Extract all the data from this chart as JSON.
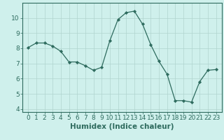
{
  "x": [
    0,
    1,
    2,
    3,
    4,
    5,
    6,
    7,
    8,
    9,
    10,
    11,
    12,
    13,
    14,
    15,
    16,
    17,
    18,
    19,
    20,
    21,
    22,
    23
  ],
  "y": [
    8.05,
    8.35,
    8.35,
    8.15,
    7.8,
    7.1,
    7.1,
    6.85,
    6.55,
    6.75,
    8.5,
    9.9,
    10.35,
    10.45,
    9.6,
    8.25,
    7.15,
    6.3,
    4.55,
    4.55,
    4.45,
    5.8,
    6.55,
    6.6
  ],
  "line_color": "#2e6b5e",
  "marker": "D",
  "marker_size": 2.2,
  "bg_color": "#cff0ec",
  "grid_major_color": "#b0d4ce",
  "grid_minor_color": "#dde8e6",
  "axis_color": "#2e6b5e",
  "tick_color": "#2e6b5e",
  "xlabel": "Humidex (Indice chaleur)",
  "ylim": [
    3.8,
    11.0
  ],
  "yticks": [
    4,
    5,
    6,
    7,
    8,
    9,
    10
  ],
  "xticks": [
    0,
    1,
    2,
    3,
    4,
    5,
    6,
    7,
    8,
    9,
    10,
    11,
    12,
    13,
    14,
    15,
    16,
    17,
    18,
    19,
    20,
    21,
    22,
    23
  ],
  "font_color": "#2e6b5e",
  "xlabel_fontsize": 7.5,
  "tick_fontsize": 6.5
}
